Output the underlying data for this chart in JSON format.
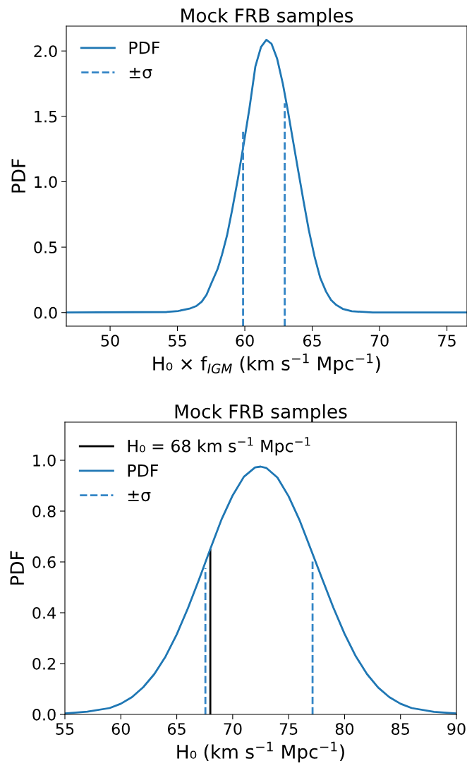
{
  "chart_data": [
    {
      "type": "line",
      "title": "Mock FRB samples",
      "xlabel": "H₀ × f$_{IGM}$ (km s$^{−1}$ Mpc$^{−1}$)",
      "ylabel": "PDF",
      "xlim": [
        46.75,
        76.49
      ],
      "ylim": [
        -0.104,
        2.19
      ],
      "xticks": [
        50,
        55,
        60,
        65,
        70,
        75
      ],
      "yticks": [
        {
          "value": 0,
          "label": "0.0"
        },
        {
          "value": 0.5,
          "label": "0.5"
        },
        {
          "value": 1,
          "label": "1.0"
        },
        {
          "value": 1.5,
          "label": "1.5"
        },
        {
          "value": 2,
          "label": "2.0"
        }
      ],
      "legend": "top left",
      "grid": false,
      "series": [
        {
          "name": "PDF",
          "color": "#1f77b4",
          "line_style": "solid",
          "x": [
            46.75,
            54.2,
            55.06,
            55.9,
            56.4,
            56.8,
            57.16,
            57.5,
            57.98,
            58.3,
            58.68,
            59.06,
            59.48,
            59.92,
            60.34,
            60.78,
            61.2,
            61.6,
            61.98,
            62.4,
            62.82,
            63.2,
            63.6,
            63.97,
            64.37,
            64.75,
            65.17,
            65.6,
            66.03,
            66.4,
            66.8,
            67.27,
            67.94,
            69.5,
            76.49
          ],
          "values": [
            0,
            0.004,
            0.012,
            0.03,
            0.05,
            0.083,
            0.136,
            0.22,
            0.333,
            0.44,
            0.59,
            0.785,
            1.02,
            1.29,
            1.56,
            1.88,
            2.03,
            2.085,
            2.055,
            1.94,
            1.75,
            1.54,
            1.3,
            1.08,
            0.845,
            0.63,
            0.43,
            0.264,
            0.16,
            0.096,
            0.057,
            0.028,
            0.01,
            0,
            0
          ]
        },
        {
          "name": "±σ",
          "color": "#3385c6",
          "line_style": "dashed",
          "x": [
            59.87,
            59.87
          ],
          "values": [
            -0.104,
            1.405
          ]
        },
        {
          "color": "#3385c6",
          "line_style": "dashed",
          "x": [
            62.96,
            62.96
          ],
          "values": [
            -0.104,
            1.6
          ]
        }
      ]
    },
    {
      "type": "line",
      "title": "Mock FRB samples",
      "xlabel": "H₀ (km s$^{−1}$ Mpc$^{−1}$)",
      "ylabel": "PDF",
      "xlim": [
        55,
        90
      ],
      "ylim": [
        0,
        1.15
      ],
      "xticks": [
        55,
        60,
        65,
        70,
        75,
        80,
        85,
        90
      ],
      "yticks": [
        {
          "value": 0,
          "label": "0.0"
        },
        {
          "value": 0.2,
          "label": "0.2"
        },
        {
          "value": 0.4,
          "label": "0.4"
        },
        {
          "value": 0.6,
          "label": "0.6"
        },
        {
          "value": 0.8,
          "label": "0.8"
        },
        {
          "value": 1,
          "label": "1.0"
        }
      ],
      "legend": "top left",
      "grid": false,
      "series": [
        {
          "name": "H₀ = 68 km s$^{−1}$ Mpc$^{−1}$",
          "color": "#000000",
          "line_style": "solid",
          "x": [
            68,
            68
          ],
          "values": [
            0,
            0.646
          ]
        },
        {
          "name": "PDF",
          "color": "#1f77b4",
          "line_style": "solid",
          "x": [
            55,
            57,
            59,
            60,
            61,
            62,
            63,
            64,
            65,
            66,
            67,
            68,
            69,
            70,
            71,
            72,
            72.5,
            73,
            74,
            75,
            76,
            77,
            78,
            79,
            80,
            81,
            82,
            83,
            84,
            85,
            86,
            88,
            90
          ],
          "values": [
            0.004,
            0.011,
            0.025,
            0.042,
            0.068,
            0.107,
            0.159,
            0.228,
            0.315,
            0.418,
            0.532,
            0.651,
            0.767,
            0.862,
            0.935,
            0.972,
            0.975,
            0.97,
            0.932,
            0.858,
            0.762,
            0.648,
            0.533,
            0.42,
            0.317,
            0.229,
            0.159,
            0.106,
            0.068,
            0.042,
            0.025,
            0.01,
            0.004
          ]
        },
        {
          "name": "±σ",
          "color": "#3385c6",
          "line_style": "dashed",
          "x": [
            67.56,
            67.56
          ],
          "values": [
            0,
            0.575
          ]
        },
        {
          "color": "#3385c6",
          "line_style": "dashed",
          "x": [
            77.14,
            77.14
          ],
          "values": [
            0,
            0.61
          ]
        }
      ]
    }
  ]
}
